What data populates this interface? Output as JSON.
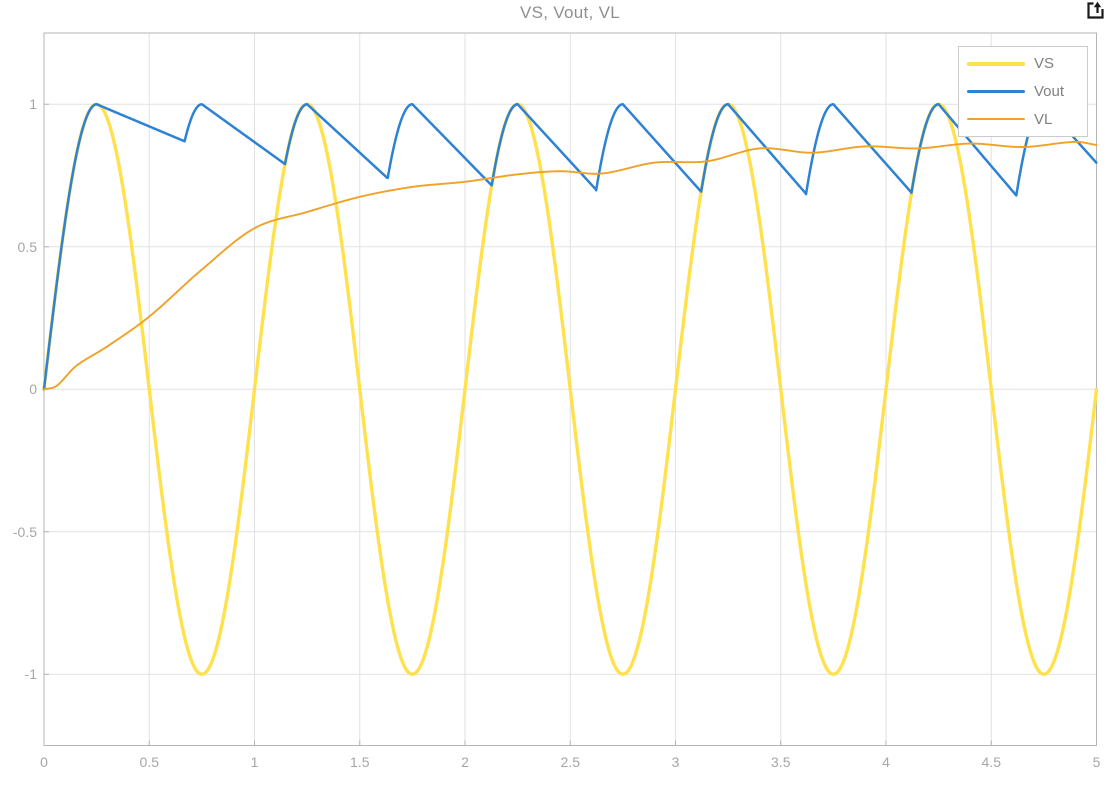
{
  "figure": {
    "title": "VS, Vout, VL",
    "popout_icon": "open-in-new-window-icon"
  },
  "colors": {
    "vs_yellow": "#FFE14D",
    "vout_blue": "#2E82D4",
    "vl_orange": "#EFA228",
    "grid": "#E2E2E2",
    "axis_border": "#B5B5B5",
    "tick_text": "#A6A6A6",
    "title_text": "#8F8F8F",
    "legend_text": "#808080",
    "legend_border": "#CBCBCB",
    "icon": "#1A1A1A"
  },
  "legend": {
    "items": [
      {
        "label": "VS",
        "color": "#FFE14D",
        "line_width": 3.5
      },
      {
        "label": "Vout",
        "color": "#2E82D4",
        "line_width": 2.6
      },
      {
        "label": "VL",
        "color": "#EFA228",
        "line_width": 2.0
      }
    ]
  },
  "chart_data": {
    "type": "line",
    "title": "VS, Vout, VL",
    "xlabel": "",
    "ylabel": "",
    "xlim": [
      0,
      5
    ],
    "ylim": [
      -1.25,
      1.25
    ],
    "grid": true,
    "legend_position": "northeast",
    "x_ticks": {
      "values": [
        0,
        0.5,
        1,
        1.5,
        2,
        2.5,
        3,
        3.5,
        4,
        4.5,
        5
      ],
      "labels": [
        "0",
        "0.5",
        "1",
        "1.5",
        "2",
        "2.5",
        "3",
        "3.5",
        "4",
        "4.5",
        "5"
      ]
    },
    "y_ticks": {
      "values": [
        -1,
        -0.5,
        0,
        0.5,
        1
      ],
      "labels": [
        "-1",
        "-0.5",
        "0",
        "0.5",
        "1"
      ]
    },
    "series": [
      {
        "name": "VS",
        "color": "#FFE14D",
        "width": 3.4,
        "model": "sine",
        "amplitude": 1,
        "frequency_hz": 1,
        "phase": 0,
        "description": "VS = sin(2*pi*t), source sine wave, amplitude 1, period 1 s, t = 0..5"
      },
      {
        "name": "Vout",
        "color": "#2E82D4",
        "width": 2.5,
        "model": "full_wave_peak_detector",
        "peak_value": 1,
        "peak_times": [
          0.25,
          0.75,
          1.25,
          1.75,
          2.25,
          2.75,
          3.25,
          3.75,
          4.25,
          4.75
        ],
        "valleys": [
          [
            0.668,
            0.87
          ],
          [
            1.145,
            0.79
          ],
          [
            1.633,
            0.74
          ],
          [
            2.127,
            0.715
          ],
          [
            2.623,
            0.7
          ],
          [
            3.122,
            0.693
          ],
          [
            3.62,
            0.686
          ],
          [
            4.121,
            0.69
          ],
          [
            4.619,
            0.68
          ],
          [
            5.139,
            0.68
          ]
        ],
        "end_value_at_t5": 0.797,
        "description": "Rectifier capacitor voltage: follows |sin(2*pi*t)| up to each peak of 1, then decays almost linearly to the next valley where the rising rectified sine catches it; last valley is virtual (clipped at t=5)."
      },
      {
        "name": "VL",
        "color": "#EFA228",
        "width": 1.9,
        "model": "sampled",
        "points": [
          [
            0.0,
            0.0
          ],
          [
            0.06,
            0.012
          ],
          [
            0.15,
            0.08
          ],
          [
            0.3,
            0.15
          ],
          [
            0.5,
            0.255
          ],
          [
            0.75,
            0.42
          ],
          [
            1.0,
            0.565
          ],
          [
            1.25,
            0.622
          ],
          [
            1.5,
            0.675
          ],
          [
            1.75,
            0.71
          ],
          [
            2.0,
            0.728
          ],
          [
            2.25,
            0.754
          ],
          [
            2.45,
            0.765
          ],
          [
            2.65,
            0.757
          ],
          [
            2.9,
            0.795
          ],
          [
            3.15,
            0.8
          ],
          [
            3.4,
            0.845
          ],
          [
            3.65,
            0.83
          ],
          [
            3.9,
            0.852
          ],
          [
            4.15,
            0.845
          ],
          [
            4.4,
            0.862
          ],
          [
            4.65,
            0.85
          ],
          [
            4.9,
            0.868
          ],
          [
            5.0,
            0.857
          ]
        ],
        "description": "Load voltage: smooth second-order rise from 0 toward ~0.86 with small 2-per-second ripple after t~2."
      }
    ]
  }
}
